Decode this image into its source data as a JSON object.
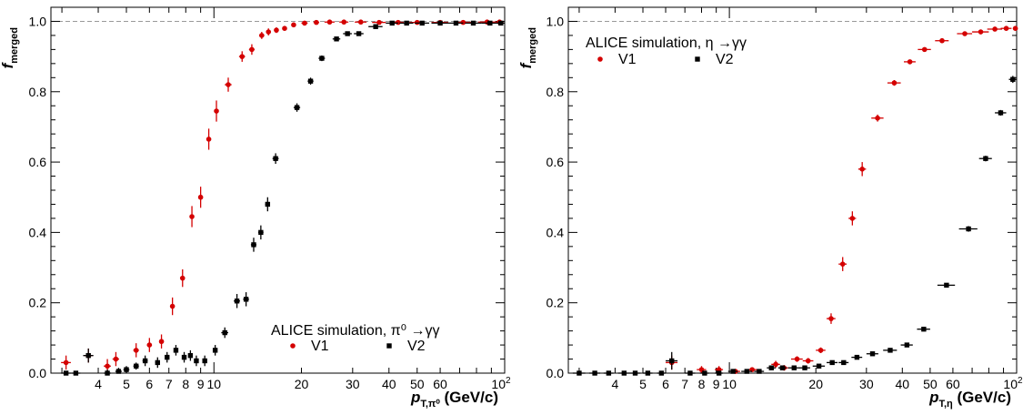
{
  "chart_data": [
    {
      "type": "scatter",
      "x_scale": "log",
      "xlim": [
        2.75,
        100
      ],
      "ylim": [
        0,
        1.04
      ],
      "yticks": [
        "0.0",
        "0.2",
        "0.4",
        "0.6",
        "0.8",
        "1.0"
      ],
      "xtick_labels": [
        "4",
        "5",
        "6",
        "7",
        "8",
        "9",
        "10",
        "20",
        "30",
        "40",
        "50",
        "60"
      ],
      "x_exponent_label": {
        "base": "10",
        "exp": "2"
      },
      "ylabel": {
        "main": "f",
        "sub": "merged"
      },
      "xlabel": {
        "main": "p",
        "sub": "T,π⁰",
        "unit": " (GeV/c)"
      },
      "annotation": "ALICE simulation, π⁰ →γγ",
      "reference_line": 1.0,
      "series": [
        {
          "name": "V1",
          "marker": "circle",
          "color": "#d40000",
          "points": [
            {
              "x": 3.1,
              "y": 0.03,
              "xerr": 0.12,
              "yerr": 0.02
            },
            {
              "x": 3.7,
              "y": 0.05,
              "xerr": 0.12,
              "yerr": 0.02
            },
            {
              "x": 4.3,
              "y": 0.02,
              "xerr": 0.12,
              "yerr": 0.02
            },
            {
              "x": 4.6,
              "y": 0.04,
              "xerr": 0.12,
              "yerr": 0.02
            },
            {
              "x": 5.4,
              "y": 0.065,
              "xerr": 0.12,
              "yerr": 0.02
            },
            {
              "x": 6.0,
              "y": 0.08,
              "xerr": 0.12,
              "yerr": 0.02
            },
            {
              "x": 6.6,
              "y": 0.09,
              "xerr": 0.12,
              "yerr": 0.02
            },
            {
              "x": 7.2,
              "y": 0.19,
              "xerr": 0.12,
              "yerr": 0.025
            },
            {
              "x": 7.8,
              "y": 0.27,
              "xerr": 0.12,
              "yerr": 0.025
            },
            {
              "x": 8.4,
              "y": 0.445,
              "xerr": 0.12,
              "yerr": 0.03
            },
            {
              "x": 9.0,
              "y": 0.5,
              "xerr": 0.12,
              "yerr": 0.03
            },
            {
              "x": 9.6,
              "y": 0.665,
              "xerr": 0.12,
              "yerr": 0.03
            },
            {
              "x": 10.2,
              "y": 0.745,
              "xerr": 0.15,
              "yerr": 0.03
            },
            {
              "x": 11.2,
              "y": 0.82,
              "xerr": 0.3,
              "yerr": 0.02
            },
            {
              "x": 12.5,
              "y": 0.9,
              "xerr": 0.3,
              "yerr": 0.015
            },
            {
              "x": 13.5,
              "y": 0.92,
              "xerr": 0.3,
              "yerr": 0.015
            },
            {
              "x": 14.6,
              "y": 0.96,
              "xerr": 0.3,
              "yerr": 0.01
            },
            {
              "x": 15.4,
              "y": 0.97,
              "xerr": 0.3,
              "yerr": 0.01
            },
            {
              "x": 16.4,
              "y": 0.975,
              "xerr": 0.3,
              "yerr": 0.008
            },
            {
              "x": 17.5,
              "y": 0.98,
              "xerr": 0.3,
              "yerr": 0.006
            },
            {
              "x": 18.8,
              "y": 0.99,
              "xerr": 0.3,
              "yerr": 0.005
            },
            {
              "x": 20.5,
              "y": 0.995,
              "xerr": 0.5,
              "yerr": 0.004
            },
            {
              "x": 22.5,
              "y": 0.997,
              "xerr": 0.5,
              "yerr": 0.004
            },
            {
              "x": 25,
              "y": 0.998,
              "xerr": 1,
              "yerr": 0.004
            },
            {
              "x": 28,
              "y": 0.998,
              "xerr": 1,
              "yerr": 0.003
            },
            {
              "x": 32,
              "y": 0.998,
              "xerr": 1.5,
              "yerr": 0.003
            },
            {
              "x": 37,
              "y": 0.997,
              "xerr": 2,
              "yerr": 0.003
            },
            {
              "x": 43,
              "y": 0.997,
              "xerr": 2,
              "yerr": 0.003
            },
            {
              "x": 50,
              "y": 0.997,
              "xerr": 3,
              "yerr": 0.003
            },
            {
              "x": 60,
              "y": 0.997,
              "xerr": 4,
              "yerr": 0.003
            },
            {
              "x": 72,
              "y": 0.997,
              "xerr": 5,
              "yerr": 0.003
            },
            {
              "x": 87,
              "y": 0.998,
              "xerr": 6,
              "yerr": 0.003
            },
            {
              "x": 96,
              "y": 0.998,
              "xerr": 3,
              "yerr": 0.003
            }
          ]
        },
        {
          "name": "V2",
          "marker": "square",
          "color": "#000000",
          "points": [
            {
              "x": 3.1,
              "y": 0.0,
              "xerr": 0.12,
              "yerr": 0.005
            },
            {
              "x": 3.35,
              "y": 0.0,
              "xerr": 0.12,
              "yerr": 0.005
            },
            {
              "x": 3.7,
              "y": 0.05,
              "xerr": 0.15,
              "yerr": 0.02
            },
            {
              "x": 4.3,
              "y": 0.0,
              "xerr": 0.12,
              "yerr": 0.01
            },
            {
              "x": 4.7,
              "y": 0.005,
              "xerr": 0.12,
              "yerr": 0.01
            },
            {
              "x": 5.0,
              "y": 0.01,
              "xerr": 0.12,
              "yerr": 0.01
            },
            {
              "x": 5.4,
              "y": 0.02,
              "xerr": 0.12,
              "yerr": 0.01
            },
            {
              "x": 5.8,
              "y": 0.035,
              "xerr": 0.12,
              "yerr": 0.015
            },
            {
              "x": 6.4,
              "y": 0.03,
              "xerr": 0.12,
              "yerr": 0.015
            },
            {
              "x": 6.9,
              "y": 0.045,
              "xerr": 0.12,
              "yerr": 0.015
            },
            {
              "x": 7.4,
              "y": 0.065,
              "xerr": 0.12,
              "yerr": 0.015
            },
            {
              "x": 7.9,
              "y": 0.045,
              "xerr": 0.12,
              "yerr": 0.015
            },
            {
              "x": 8.3,
              "y": 0.05,
              "xerr": 0.12,
              "yerr": 0.015
            },
            {
              "x": 8.7,
              "y": 0.035,
              "xerr": 0.12,
              "yerr": 0.015
            },
            {
              "x": 9.3,
              "y": 0.035,
              "xerr": 0.15,
              "yerr": 0.015
            },
            {
              "x": 10.1,
              "y": 0.065,
              "xerr": 0.15,
              "yerr": 0.015
            },
            {
              "x": 10.9,
              "y": 0.115,
              "xerr": 0.3,
              "yerr": 0.015
            },
            {
              "x": 12.0,
              "y": 0.205,
              "xerr": 0.3,
              "yerr": 0.02
            },
            {
              "x": 12.9,
              "y": 0.21,
              "xerr": 0.3,
              "yerr": 0.02
            },
            {
              "x": 13.7,
              "y": 0.365,
              "xerr": 0.3,
              "yerr": 0.02
            },
            {
              "x": 14.5,
              "y": 0.4,
              "xerr": 0.3,
              "yerr": 0.02
            },
            {
              "x": 15.3,
              "y": 0.48,
              "xerr": 0.3,
              "yerr": 0.02
            },
            {
              "x": 16.3,
              "y": 0.61,
              "xerr": 0.4,
              "yerr": 0.015
            },
            {
              "x": 19.3,
              "y": 0.755,
              "xerr": 0.5,
              "yerr": 0.012
            },
            {
              "x": 21.5,
              "y": 0.83,
              "xerr": 0.5,
              "yerr": 0.01
            },
            {
              "x": 23.5,
              "y": 0.895,
              "xerr": 0.6,
              "yerr": 0.008
            },
            {
              "x": 26.4,
              "y": 0.95,
              "xerr": 0.8,
              "yerr": 0.006
            },
            {
              "x": 28.8,
              "y": 0.965,
              "xerr": 1,
              "yerr": 0.005
            },
            {
              "x": 31.5,
              "y": 0.965,
              "xerr": 1.2,
              "yerr": 0.005
            },
            {
              "x": 36,
              "y": 0.985,
              "xerr": 2,
              "yerr": 0.004
            },
            {
              "x": 41,
              "y": 0.995,
              "xerr": 2,
              "yerr": 0.003
            },
            {
              "x": 46,
              "y": 0.995,
              "xerr": 2.5,
              "yerr": 0.003
            },
            {
              "x": 52,
              "y": 0.995,
              "xerr": 3,
              "yerr": 0.003
            },
            {
              "x": 60,
              "y": 0.995,
              "xerr": 4,
              "yerr": 0.003
            },
            {
              "x": 68,
              "y": 0.995,
              "xerr": 4,
              "yerr": 0.003
            },
            {
              "x": 78,
              "y": 0.995,
              "xerr": 5,
              "yerr": 0.003
            },
            {
              "x": 89,
              "y": 0.995,
              "xerr": 6,
              "yerr": 0.003
            },
            {
              "x": 97,
              "y": 0.995,
              "xerr": 3,
              "yerr": 0.003
            }
          ]
        }
      ]
    },
    {
      "type": "scatter",
      "x_scale": "log",
      "xlim": [
        2.75,
        100
      ],
      "ylim": [
        0,
        1.04
      ],
      "yticks": [
        "0.0",
        "0.2",
        "0.4",
        "0.6",
        "0.8",
        "1.0"
      ],
      "xtick_labels": [
        "4",
        "5",
        "6",
        "7",
        "8",
        "9",
        "10",
        "20",
        "30",
        "40",
        "50",
        "60"
      ],
      "x_exponent_label": {
        "base": "10",
        "exp": "2"
      },
      "ylabel": {
        "main": "f",
        "sub": "merged"
      },
      "xlabel": {
        "main": "p",
        "sub": "T,η",
        "unit": " (GeV/c)"
      },
      "annotation": "ALICE simulation, η →γγ",
      "reference_line": 1.0,
      "series": [
        {
          "name": "V1",
          "marker": "circle",
          "color": "#d40000",
          "points": [
            {
              "x": 6.3,
              "y": 0.03,
              "xerr": 0.3,
              "yerr": 0.02
            },
            {
              "x": 8.0,
              "y": 0.01,
              "xerr": 0.3,
              "yerr": 0.01
            },
            {
              "x": 9.2,
              "y": 0.01,
              "xerr": 0.3,
              "yerr": 0.01
            },
            {
              "x": 10.5,
              "y": 0.005,
              "xerr": 0.4,
              "yerr": 0.005
            },
            {
              "x": 12,
              "y": 0.01,
              "xerr": 0.5,
              "yerr": 0.005
            },
            {
              "x": 14.5,
              "y": 0.025,
              "xerr": 0.5,
              "yerr": 0.01
            },
            {
              "x": 15.5,
              "y": 0.015,
              "xerr": 0.5,
              "yerr": 0.008
            },
            {
              "x": 17.2,
              "y": 0.04,
              "xerr": 0.8,
              "yerr": 0.008
            },
            {
              "x": 18.8,
              "y": 0.035,
              "xerr": 0.8,
              "yerr": 0.008
            },
            {
              "x": 20.8,
              "y": 0.065,
              "xerr": 0.8,
              "yerr": 0.008
            },
            {
              "x": 22.6,
              "y": 0.155,
              "xerr": 0.8,
              "yerr": 0.015
            },
            {
              "x": 24.8,
              "y": 0.31,
              "xerr": 0.8,
              "yerr": 0.02
            },
            {
              "x": 26.8,
              "y": 0.44,
              "xerr": 0.8,
              "yerr": 0.02
            },
            {
              "x": 29,
              "y": 0.58,
              "xerr": 0.9,
              "yerr": 0.02
            },
            {
              "x": 32.8,
              "y": 0.725,
              "xerr": 1.6,
              "yerr": 0.01
            },
            {
              "x": 37.5,
              "y": 0.825,
              "xerr": 2,
              "yerr": 0.008
            },
            {
              "x": 42.5,
              "y": 0.885,
              "xerr": 2,
              "yerr": 0.006
            },
            {
              "x": 47.8,
              "y": 0.92,
              "xerr": 2.5,
              "yerr": 0.005
            },
            {
              "x": 55,
              "y": 0.945,
              "xerr": 3,
              "yerr": 0.004
            },
            {
              "x": 66,
              "y": 0.965,
              "xerr": 4,
              "yerr": 0.003
            },
            {
              "x": 75,
              "y": 0.97,
              "xerr": 5,
              "yerr": 0.003
            },
            {
              "x": 84,
              "y": 0.978,
              "xerr": 5,
              "yerr": 0.003
            },
            {
              "x": 92,
              "y": 0.98,
              "xerr": 4,
              "yerr": 0.003
            },
            {
              "x": 99,
              "y": 0.98,
              "xerr": 2,
              "yerr": 0.003
            }
          ]
        },
        {
          "name": "V2",
          "marker": "square",
          "color": "#000000",
          "points": [
            {
              "x": 3.0,
              "y": 0.0,
              "xerr": 0.15,
              "yerr": 0.003
            },
            {
              "x": 3.4,
              "y": 0.0,
              "xerr": 0.15,
              "yerr": 0.003
            },
            {
              "x": 3.8,
              "y": 0.0,
              "xerr": 0.15,
              "yerr": 0.003
            },
            {
              "x": 4.3,
              "y": 0.0,
              "xerr": 0.2,
              "yerr": 0.003
            },
            {
              "x": 4.7,
              "y": 0.0,
              "xerr": 0.2,
              "yerr": 0.003
            },
            {
              "x": 5.2,
              "y": 0.0,
              "xerr": 0.2,
              "yerr": 0.003
            },
            {
              "x": 5.8,
              "y": 0.0,
              "xerr": 0.2,
              "yerr": 0.003
            },
            {
              "x": 6.3,
              "y": 0.035,
              "xerr": 0.3,
              "yerr": 0.025
            },
            {
              "x": 7.3,
              "y": 0.0,
              "xerr": 0.3,
              "yerr": 0.003
            },
            {
              "x": 8.2,
              "y": 0.0,
              "xerr": 0.3,
              "yerr": 0.003
            },
            {
              "x": 9.2,
              "y": 0.0,
              "xerr": 0.3,
              "yerr": 0.003
            },
            {
              "x": 10.3,
              "y": 0.005,
              "xerr": 0.4,
              "yerr": 0.004
            },
            {
              "x": 11.5,
              "y": 0.005,
              "xerr": 0.5,
              "yerr": 0.004
            },
            {
              "x": 12.7,
              "y": 0.005,
              "xerr": 0.5,
              "yerr": 0.004
            },
            {
              "x": 14.0,
              "y": 0.015,
              "xerr": 0.5,
              "yerr": 0.005
            },
            {
              "x": 15.3,
              "y": 0.015,
              "xerr": 0.5,
              "yerr": 0.005
            },
            {
              "x": 16.8,
              "y": 0.015,
              "xerr": 0.8,
              "yerr": 0.005
            },
            {
              "x": 18.3,
              "y": 0.015,
              "xerr": 0.8,
              "yerr": 0.005
            },
            {
              "x": 20.5,
              "y": 0.02,
              "xerr": 1,
              "yerr": 0.005
            },
            {
              "x": 22.8,
              "y": 0.03,
              "xerr": 1,
              "yerr": 0.005
            },
            {
              "x": 25,
              "y": 0.03,
              "xerr": 1,
              "yerr": 0.005
            },
            {
              "x": 27.8,
              "y": 0.045,
              "xerr": 1.2,
              "yerr": 0.005
            },
            {
              "x": 31.5,
              "y": 0.055,
              "xerr": 1.5,
              "yerr": 0.005
            },
            {
              "x": 36.3,
              "y": 0.065,
              "xerr": 2,
              "yerr": 0.005
            },
            {
              "x": 41.5,
              "y": 0.08,
              "xerr": 2,
              "yerr": 0.005
            },
            {
              "x": 47.5,
              "y": 0.125,
              "xerr": 2.5,
              "yerr": 0.006
            },
            {
              "x": 57,
              "y": 0.25,
              "xerr": 4,
              "yerr": 0.006
            },
            {
              "x": 68,
              "y": 0.41,
              "xerr": 5,
              "yerr": 0.008
            },
            {
              "x": 78,
              "y": 0.61,
              "xerr": 4,
              "yerr": 0.008
            },
            {
              "x": 88,
              "y": 0.74,
              "xerr": 4,
              "yerr": 0.008
            },
            {
              "x": 97,
              "y": 0.835,
              "xerr": 3,
              "yerr": 0.01
            }
          ]
        }
      ]
    }
  ]
}
